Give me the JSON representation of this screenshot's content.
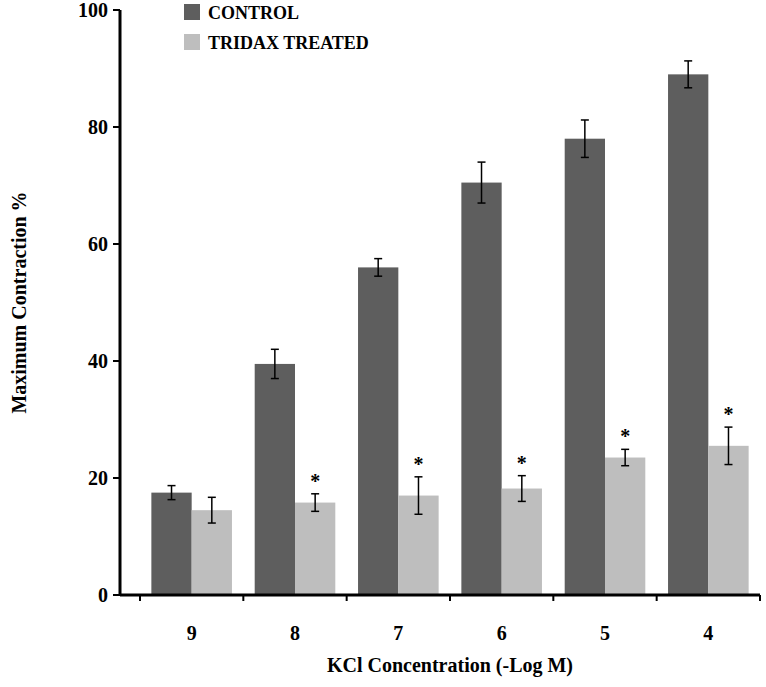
{
  "chart_data": {
    "type": "bar",
    "x_label": "KCl Concentration (-Log M)",
    "y_label": "Maximum Contraction %",
    "categories": [
      "9",
      "8",
      "7",
      "6",
      "5",
      "4"
    ],
    "series": [
      {
        "name": "CONTROL",
        "color": "#5e5e5e",
        "values": [
          17.5,
          39.5,
          56,
          70.5,
          78,
          89
        ],
        "errors": [
          1.2,
          2.5,
          1.5,
          3.5,
          3.2,
          2.3
        ]
      },
      {
        "name": "TRIDAX TREATED",
        "color": "#bebebe",
        "values": [
          14.5,
          15.8,
          17,
          18.2,
          23.5,
          25.5
        ],
        "errors": [
          2.2,
          1.5,
          3.2,
          2.2,
          1.4,
          3.2
        ],
        "significance": [
          null,
          "*",
          "*",
          "*",
          "*",
          "*"
        ]
      }
    ],
    "ylim": [
      0,
      100
    ],
    "yticks": [
      0,
      20,
      40,
      60,
      80,
      100
    ],
    "grid": false,
    "legend": "top"
  }
}
